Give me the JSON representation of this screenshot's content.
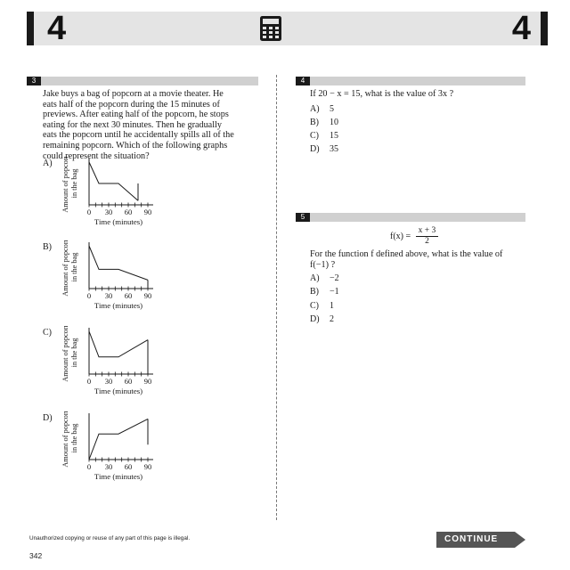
{
  "header": {
    "left_number": "4",
    "right_number": "4",
    "center_icon": "calculator-icon"
  },
  "q3": {
    "number": "3",
    "lines": [
      "Jake buys a bag of popcorn at a movie theater. He",
      "eats half of the popcorn during the 15 minutes of",
      "previews. After eating half of the popcorn, he stops",
      "eating for the next 30 minutes. Then he gradually",
      "eats the popcorn until he accidentally spills all of the",
      "remaining popcorn. Which of the following graphs",
      "could represent the situation?"
    ],
    "graphs": [
      {
        "label": "A)",
        "points": [
          [
            0,
            1
          ],
          [
            15,
            0.5
          ],
          [
            45,
            0.5
          ],
          [
            75,
            0.1
          ]
        ],
        "drop": "up",
        "drop_x": 75,
        "drop_to": 0.5
      },
      {
        "label": "B)",
        "points": [
          [
            0,
            1
          ],
          [
            15,
            0.45
          ],
          [
            45,
            0.45
          ],
          [
            90,
            0.2
          ]
        ],
        "drop": "down",
        "drop_x": 90,
        "drop_to": 0
      },
      {
        "label": "C)",
        "points": [
          [
            0,
            1
          ],
          [
            15,
            0.4
          ],
          [
            45,
            0.4
          ],
          [
            90,
            0.8
          ]
        ],
        "drop": "down",
        "drop_x": 90,
        "drop_to": 0
      },
      {
        "label": "D)",
        "points": [
          [
            0,
            0
          ],
          [
            15,
            0.6
          ],
          [
            45,
            0.6
          ],
          [
            90,
            0.95
          ]
        ],
        "drop": "down",
        "drop_x": 90,
        "drop_to": 0.35
      }
    ],
    "axis": {
      "ylabel_line1": "Amount of popcorn",
      "ylabel_line2": "in the bag",
      "xlabel": "Time (minutes)",
      "ticks": [
        "0",
        "30",
        "60",
        "90"
      ]
    }
  },
  "q4": {
    "number": "4",
    "stem": "If 20 − x = 15, what is the value of 3x ?",
    "choices": [
      {
        "label": "A)",
        "value": "5"
      },
      {
        "label": "B)",
        "value": "10"
      },
      {
        "label": "C)",
        "value": "15"
      },
      {
        "label": "D)",
        "value": "35"
      }
    ]
  },
  "q5": {
    "number": "5",
    "fx_lhs": "f(x) =",
    "fx_num": "x + 3",
    "fx_den": "2",
    "stem_line1": "For the function f defined above, what is the value of",
    "stem_line2": "f(−1) ?",
    "choices": [
      {
        "label": "A)",
        "value": "−2"
      },
      {
        "label": "B)",
        "value": "−1"
      },
      {
        "label": "C)",
        "value": "1"
      },
      {
        "label": "D)",
        "value": "2"
      }
    ]
  },
  "footer": {
    "notice": "Unauthorized copying or reuse of any part of this page is illegal.",
    "page": "342",
    "continue": "CONTINUE"
  }
}
